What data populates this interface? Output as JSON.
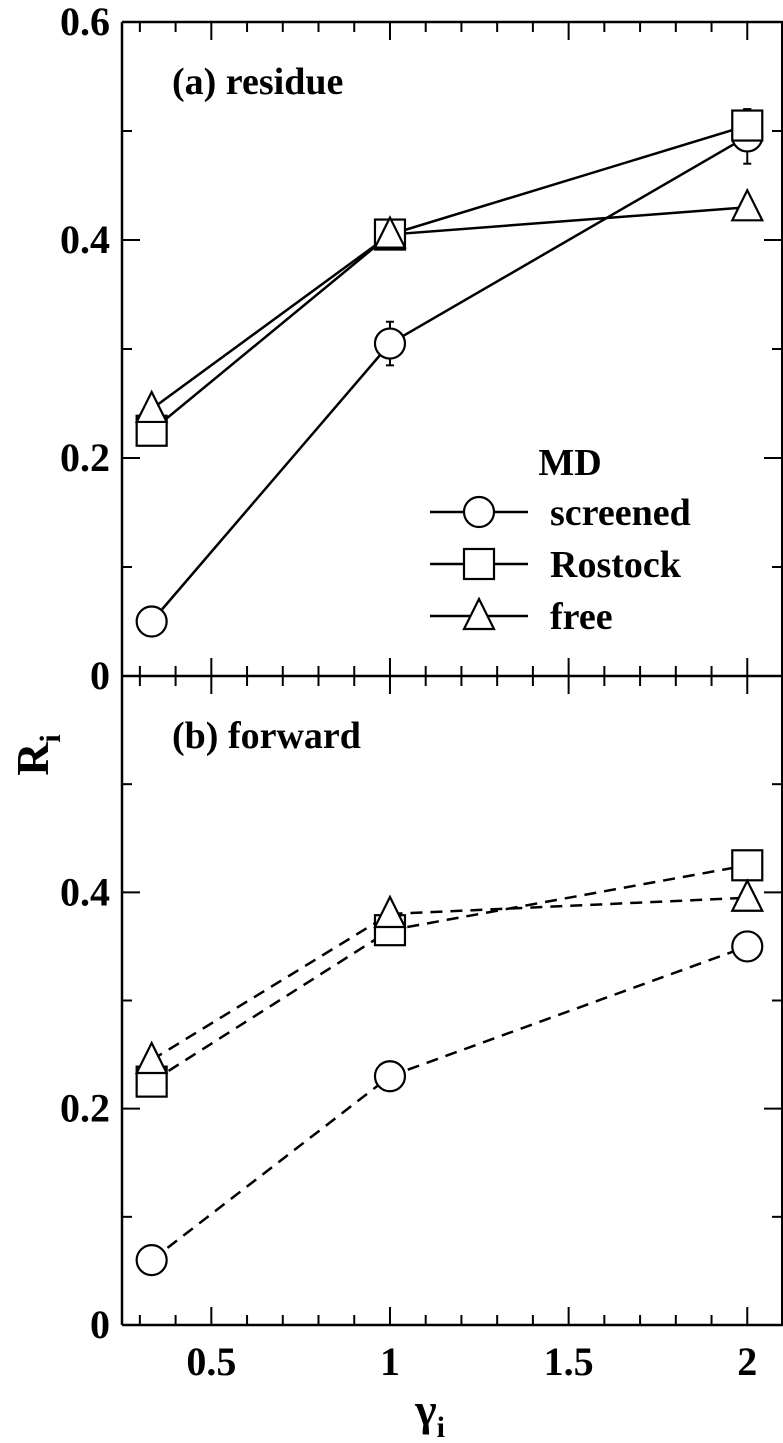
{
  "chart_data": [
    {
      "panel": "a",
      "label": "(a) residue",
      "type": "line",
      "line_style": "solid",
      "x": [
        0.333,
        1,
        2
      ],
      "ylim": [
        0,
        0.6
      ],
      "yticks": [
        "0",
        "0.2",
        "0.4",
        "0.6"
      ],
      "series": [
        {
          "name": "screened",
          "marker": "circle",
          "values": [
            0.05,
            0.305,
            0.495
          ],
          "errors": [
            0,
            0.02,
            0.025
          ]
        },
        {
          "name": "Rostock",
          "marker": "square",
          "values": [
            0.225,
            0.405,
            0.505
          ],
          "errors": [
            0,
            0,
            0.015
          ]
        },
        {
          "name": "free",
          "marker": "triangle",
          "values": [
            0.245,
            0.405,
            0.43
          ],
          "errors": [
            0,
            0,
            0
          ]
        }
      ],
      "legend": {
        "title": "MD",
        "position": "center-right"
      }
    },
    {
      "panel": "b",
      "label": "(b) forward",
      "type": "line",
      "line_style": "dashed",
      "x": [
        0.333,
        1,
        2
      ],
      "ylim": [
        0,
        0.6
      ],
      "yticks": [
        "0",
        "0.2",
        "0.4"
      ],
      "series": [
        {
          "name": "screened",
          "marker": "circle",
          "values": [
            0.06,
            0.23,
            0.35
          ],
          "errors": [
            0,
            0,
            0
          ]
        },
        {
          "name": "Rostock",
          "marker": "square",
          "values": [
            0.225,
            0.365,
            0.425
          ],
          "errors": [
            0,
            0,
            0
          ]
        },
        {
          "name": "free",
          "marker": "triangle",
          "values": [
            0.245,
            0.38,
            0.395
          ],
          "errors": [
            0,
            0,
            0
          ]
        }
      ]
    }
  ],
  "axes": {
    "xlim": [
      0.25,
      2.1
    ],
    "xticks": [
      "0.5",
      "1",
      "1.5",
      "2"
    ],
    "xtick_values": [
      0.5,
      1,
      1.5,
      2
    ],
    "xlabel_main": "γ",
    "xlabel_sub": "i",
    "ylabel_main": "R",
    "ylabel_sub": "i"
  }
}
